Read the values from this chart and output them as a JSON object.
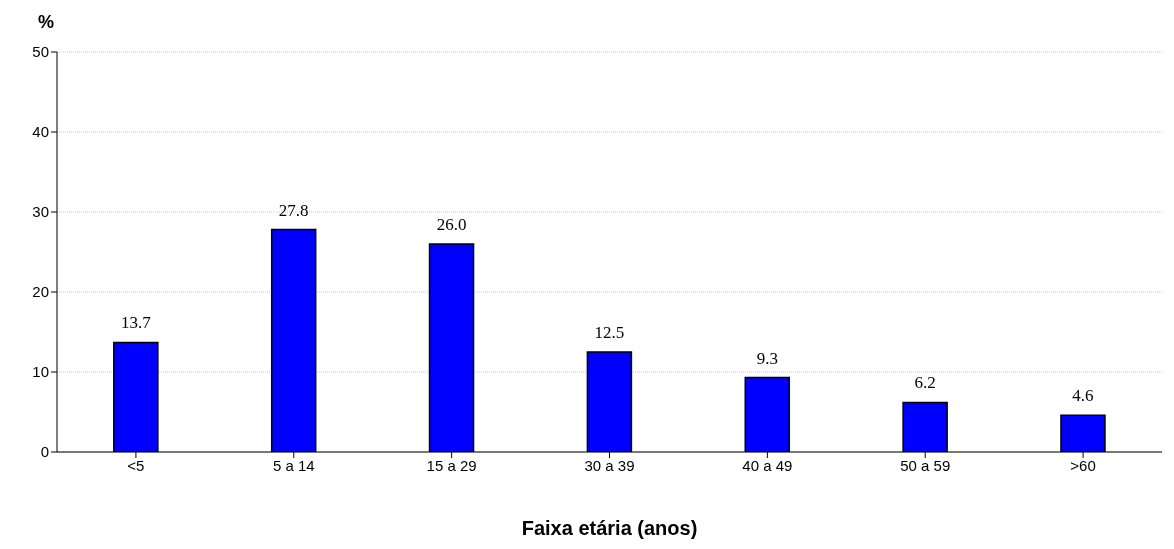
{
  "chart_data": {
    "type": "bar",
    "ylabel": "%",
    "xlabel": "Faixa etária (anos)",
    "categories": [
      "<5",
      "5 a 14",
      "15 a 29",
      "30 a 39",
      "40 a 49",
      "50 a 59",
      ">60"
    ],
    "values": [
      13.7,
      27.8,
      26.0,
      12.5,
      9.3,
      6.2,
      4.6
    ],
    "value_labels": [
      "13.7",
      "27.8",
      "26.0",
      "12.5",
      "9.3",
      "6.2",
      "4.6"
    ],
    "color": "#0000ff",
    "ylim": [
      0,
      50
    ],
    "yticks": [
      0,
      10,
      20,
      30,
      40,
      50
    ],
    "grid": "y"
  }
}
